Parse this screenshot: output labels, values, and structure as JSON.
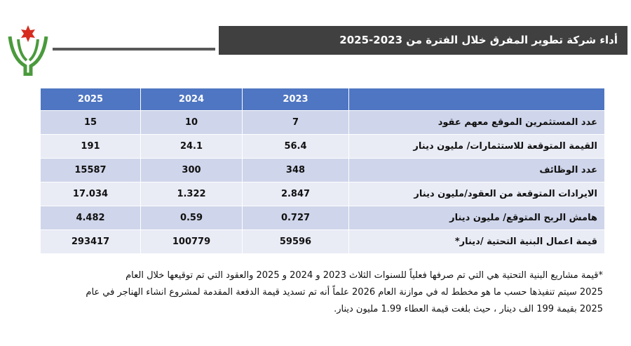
{
  "header": {
    "title": "أداء شركة تطوير المفرق خلال الفترة من 2023-2025"
  },
  "table": {
    "columns": [
      "2023",
      "2024",
      "2025"
    ],
    "rows": [
      {
        "label": "عدد المستثمرين الموقع معهم عقود",
        "values": [
          "7",
          "10",
          "15"
        ]
      },
      {
        "label": "القيمة المتوقعة للاستثمارات/ مليون دينار",
        "values": [
          "56.4",
          "24.1",
          "191"
        ]
      },
      {
        "label": "عدد الوظائف",
        "values": [
          "348",
          "300",
          "15587"
        ]
      },
      {
        "label": "الايرادات المتوقعة من العقود/مليون دينار",
        "values": [
          "2.847",
          "1.322",
          "17.034"
        ]
      },
      {
        "label": "هامش الربح المتوقع/ مليون دينار",
        "values": [
          "0.727",
          "0.59",
          "4.482"
        ]
      },
      {
        "label": "قيمة اعمال البنية التحتية /دينار*",
        "values": [
          "59596",
          "100779",
          "293417"
        ]
      }
    ]
  },
  "footnote": {
    "lines": [
      "*قيمة مشاريع البنية التحتية هي التي تم صرفها فعلياً للسنوات الثلاث 2023 و 2024 و 2025 والعقود التي تم توقيعها خلال العام",
      "2025 سيتم تنفيذها حسب ما هو مخطط له في موازنة العام 2026 علماً أنه تم تسديد قيمة الدفعة المقدمة لمشروع انشاء الهناجر في عام",
      "2025 بقيمة 199 الف دينار ، حيث بلغت قيمة العطاء 1.99 مليون دينار."
    ]
  }
}
